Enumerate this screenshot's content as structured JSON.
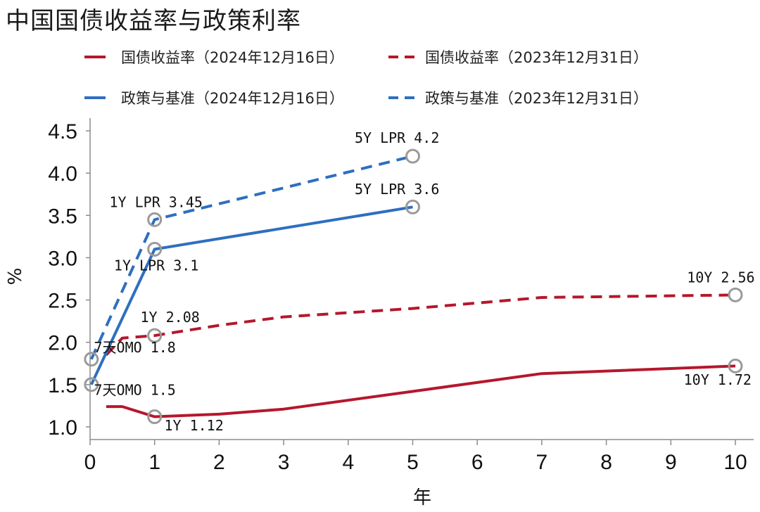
{
  "chart_data": {
    "type": "line",
    "title": "中国国债收益率与政策利率",
    "xlabel": "年",
    "ylabel": "%",
    "xlim": [
      0,
      10
    ],
    "ylim": [
      0.85,
      4.65
    ],
    "xticks": [
      "0",
      "1",
      "2",
      "3",
      "4",
      "5",
      "6",
      "7",
      "8",
      "9",
      "10"
    ],
    "yticks": [
      "1.0",
      "1.5",
      "2.0",
      "2.5",
      "3.0",
      "3.5",
      "4.0",
      "4.5"
    ],
    "ytick_values": [
      1.0,
      1.5,
      2.0,
      2.5,
      3.0,
      3.5,
      4.0,
      4.5
    ],
    "legend_position": "top",
    "grid": false,
    "series": [
      {
        "name": "国债收益率（2024年12月16日）",
        "color": "#b5172c",
        "style": "solid",
        "x": [
          0.25,
          0.5,
          1,
          2,
          3,
          5,
          7,
          10
        ],
        "y": [
          1.24,
          1.24,
          1.12,
          1.15,
          1.21,
          1.42,
          1.63,
          1.72
        ]
      },
      {
        "name": "国债收益率（2023年12月31日）",
        "color": "#b5172c",
        "style": "dashed",
        "x": [
          0.25,
          0.5,
          1,
          2,
          3,
          5,
          7,
          10
        ],
        "y": [
          1.85,
          2.05,
          2.08,
          2.2,
          2.3,
          2.4,
          2.53,
          2.56
        ]
      },
      {
        "name": "政策与基准（2024年12月16日）",
        "color": "#2e6fc0",
        "style": "solid",
        "x": [
          0.02,
          1,
          5
        ],
        "y": [
          1.5,
          3.1,
          3.6
        ]
      },
      {
        "name": "政策与基准（2023年12月31日）",
        "color": "#2e6fc0",
        "style": "dashed",
        "x": [
          0.02,
          1,
          5
        ],
        "y": [
          1.8,
          3.45,
          4.2
        ]
      }
    ],
    "markers": [
      {
        "x": 5,
        "y": 4.2
      },
      {
        "x": 5,
        "y": 3.6
      },
      {
        "x": 1,
        "y": 3.45
      },
      {
        "x": 1,
        "y": 3.1
      },
      {
        "x": 1,
        "y": 2.08
      },
      {
        "x": 1,
        "y": 1.12
      },
      {
        "x": 0.02,
        "y": 1.8
      },
      {
        "x": 0.02,
        "y": 1.5
      },
      {
        "x": 10,
        "y": 2.56
      },
      {
        "x": 10,
        "y": 1.72
      }
    ],
    "annotations": [
      {
        "text": "5Y LPR 4.2",
        "x": 4.1,
        "y": 4.36
      },
      {
        "text": "5Y LPR 3.6",
        "x": 4.1,
        "y": 3.75
      },
      {
        "text": "1Y LPR 3.45",
        "x": 0.3,
        "y": 3.6
      },
      {
        "text": "1Y LPR 3.1",
        "x": 0.37,
        "y": 2.85
      },
      {
        "text": "10Y 2.56",
        "x": 9.25,
        "y": 2.71
      },
      {
        "text": "1Y 2.08",
        "x": 0.78,
        "y": 2.24
      },
      {
        "text": "7天OMO 1.8",
        "x": 0.06,
        "y": 1.88
      },
      {
        "text": "7天OMO 1.5",
        "x": 0.06,
        "y": 1.38
      },
      {
        "text": "1Y 1.12",
        "x": 1.15,
        "y": 0.96
      },
      {
        "text": "10Y 1.72",
        "x": 9.2,
        "y": 1.5
      }
    ]
  }
}
